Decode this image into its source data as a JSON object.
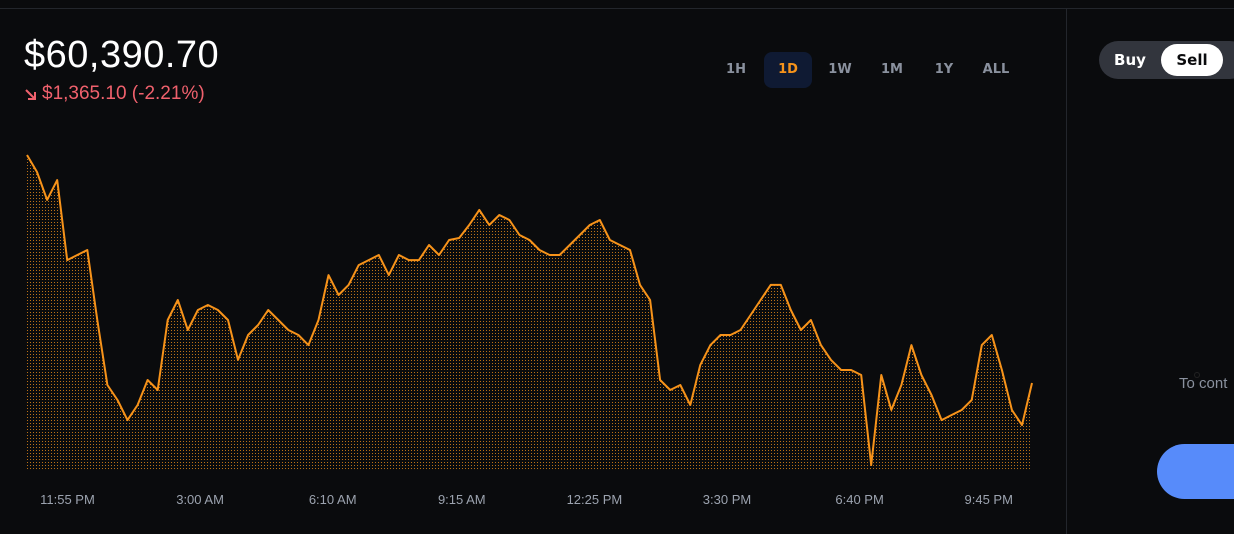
{
  "header": {
    "price": "$60,390.70",
    "change": "$1,365.10 (-2.21%)"
  },
  "timeframes": {
    "options": [
      "1H",
      "1D",
      "1W",
      "1M",
      "1Y",
      "ALL"
    ],
    "selected": "1D"
  },
  "trade_panel": {
    "tabs": [
      "Buy",
      "Sell"
    ],
    "selected": "Sell",
    "note": "To cont"
  },
  "chart_data": {
    "type": "area",
    "color": "#f7931a",
    "xlim": [
      0,
      1440
    ],
    "xticks": [
      {
        "value": 58,
        "label": "11:55 PM"
      },
      {
        "value": 248,
        "label": "3:00 AM"
      },
      {
        "value": 438,
        "label": "6:10 AM"
      },
      {
        "value": 623,
        "label": "9:15 AM"
      },
      {
        "value": 813,
        "label": "12:25 PM"
      },
      {
        "value": 1003,
        "label": "3:30 PM"
      },
      {
        "value": 1193,
        "label": "6:40 PM"
      },
      {
        "value": 1378,
        "label": "9:45 PM"
      }
    ],
    "ylim": [
      59864,
      61756
    ],
    "values": [
      61756,
      61654,
      61487,
      61606,
      61127,
      61157,
      61187,
      60768,
      60379,
      60289,
      60169,
      60259,
      60409,
      60349,
      60768,
      60888,
      60708,
      60828,
      60858,
      60828,
      60768,
      60529,
      60678,
      60738,
      60828,
      60768,
      60708,
      60678,
      60618,
      60768,
      61037,
      60918,
      60978,
      61097,
      61127,
      61157,
      61037,
      61157,
      61127,
      61127,
      61217,
      61157,
      61247,
      61259,
      61337,
      61427,
      61337,
      61397,
      61367,
      61277,
      61247,
      61187,
      61157,
      61157,
      61217,
      61277,
      61337,
      61367,
      61247,
      61217,
      61187,
      60978,
      60888,
      60409,
      60349,
      60379,
      60259,
      60499,
      60618,
      60678,
      60678,
      60708,
      60798,
      60888,
      60978,
      60978,
      60828,
      60708,
      60768,
      60618,
      60529,
      60469,
      60469,
      60439,
      59900,
      60439,
      60229,
      60379,
      60618,
      60439,
      60319,
      60169,
      60199,
      60229,
      60289,
      60618,
      60678,
      60469,
      60229,
      60139,
      60391
    ]
  }
}
